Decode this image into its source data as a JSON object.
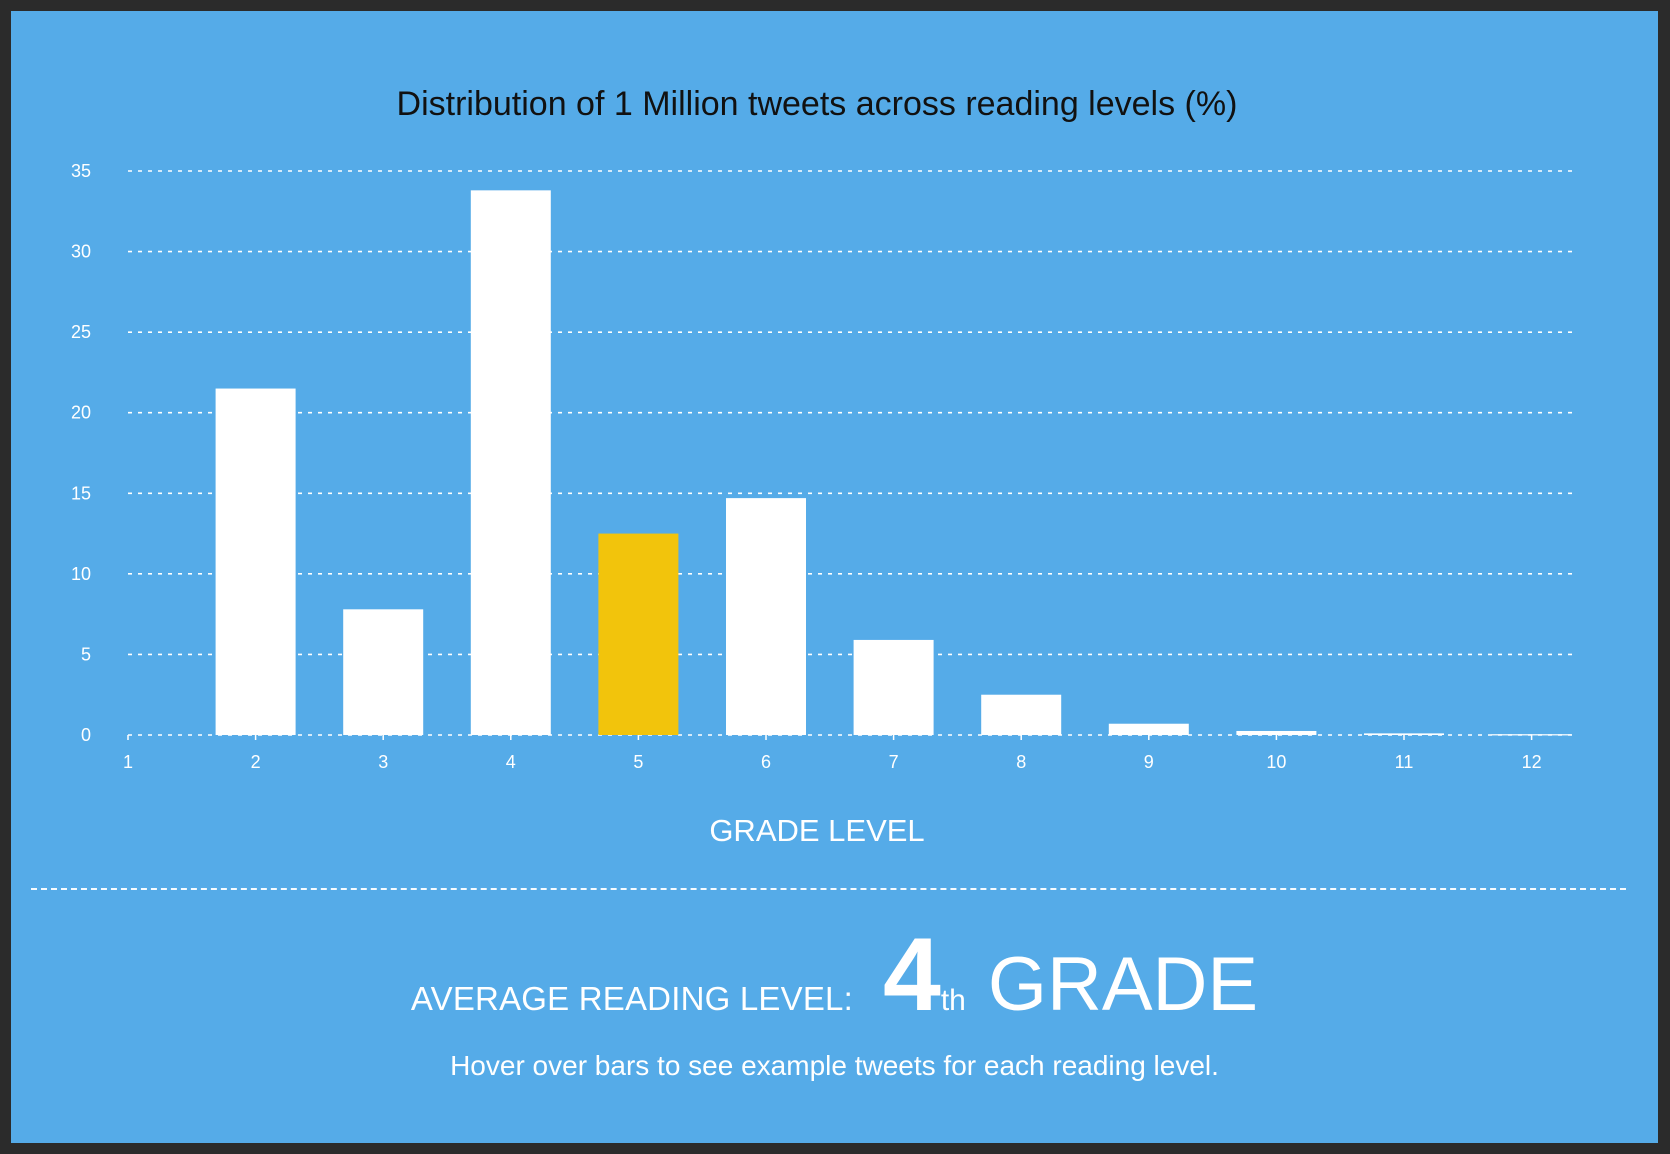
{
  "chart_data": {
    "type": "bar",
    "title": "Distribution of 1 Million tweets across reading levels (%)",
    "xlabel": "GRADE LEVEL",
    "ylabel": "",
    "categories": [
      "1",
      "2",
      "3",
      "4",
      "5",
      "6",
      "7",
      "8",
      "9",
      "10",
      "11",
      "12"
    ],
    "values": [
      0,
      21.5,
      7.8,
      33.8,
      12.5,
      14.7,
      5.9,
      2.5,
      0.7,
      0.25,
      0.1,
      0.05
    ],
    "yticks": [
      "0",
      "5",
      "10",
      "15",
      "20",
      "25",
      "30",
      "35"
    ],
    "ylim": [
      0,
      35
    ],
    "grid": true,
    "highlighted_category": "5",
    "colors": {
      "background": "#55abe8",
      "bar": "#ffffff",
      "highlight": "#f2c40c",
      "title": "#111111",
      "text": "#ffffff"
    }
  },
  "summary": {
    "label": "AVERAGE READING LEVEL:",
    "value": "4",
    "suffix": "th",
    "unit": "GRADE",
    "hint": "Hover over bars to see example tweets for each reading level."
  }
}
